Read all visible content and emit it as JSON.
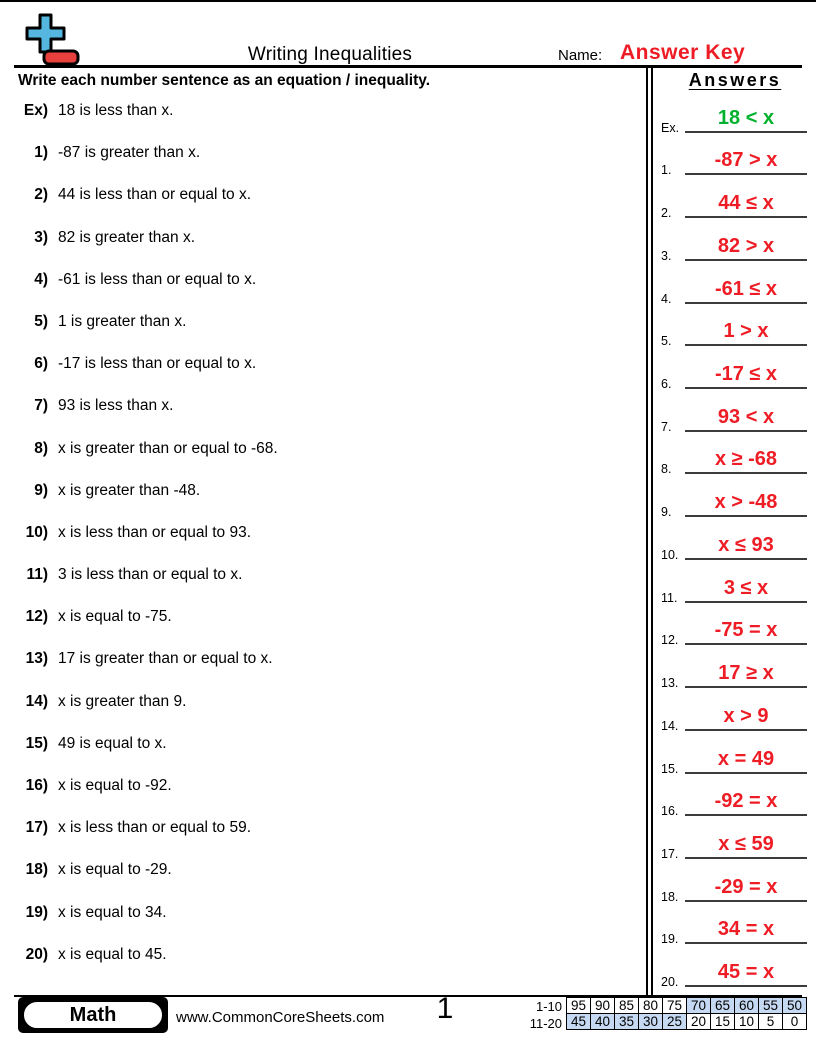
{
  "colors": {
    "answer-red": "#EE1C25",
    "example-green": "#00B22D",
    "logo-blue": "#55B7E0",
    "logo-red": "#E8403D",
    "table-highlight": "#C6D9F2"
  },
  "header": {
    "title": "Writing Inequalities",
    "name_label": "Name:",
    "name_value": "Answer Key"
  },
  "instruction": "Write each number sentence as an equation / inequality.",
  "answers_panel": {
    "heading": "Answers"
  },
  "questions": [
    {
      "label": "Ex)",
      "text": "18 is less than x."
    },
    {
      "label": "1)",
      "text": "-87 is greater than x."
    },
    {
      "label": "2)",
      "text": "44 is less than or equal to x."
    },
    {
      "label": "3)",
      "text": "82 is greater than x."
    },
    {
      "label": "4)",
      "text": "-61 is less than or equal to x."
    },
    {
      "label": "5)",
      "text": "1 is greater than x."
    },
    {
      "label": "6)",
      "text": "-17 is less than or equal to x."
    },
    {
      "label": "7)",
      "text": "93 is less than x."
    },
    {
      "label": "8)",
      "text": "x is greater than or equal to -68."
    },
    {
      "label": "9)",
      "text": "x is greater than -48."
    },
    {
      "label": "10)",
      "text": "x is less than or equal to 93."
    },
    {
      "label": "11)",
      "text": "3 is less than or equal to x."
    },
    {
      "label": "12)",
      "text": "x is equal to -75."
    },
    {
      "label": "13)",
      "text": "17 is greater than or equal to x."
    },
    {
      "label": "14)",
      "text": "x is greater than 9."
    },
    {
      "label": "15)",
      "text": "49 is equal to x."
    },
    {
      "label": "16)",
      "text": "x is equal to -92."
    },
    {
      "label": "17)",
      "text": "x is less than or equal to 59."
    },
    {
      "label": "18)",
      "text": "x is equal to -29."
    },
    {
      "label": "19)",
      "text": "x is equal to 34."
    },
    {
      "label": "20)",
      "text": "x is equal to 45."
    }
  ],
  "answers": [
    {
      "label": "Ex.",
      "value": "18 < x"
    },
    {
      "label": "1.",
      "value": "-87 > x"
    },
    {
      "label": "2.",
      "value": "44 ≤ x"
    },
    {
      "label": "3.",
      "value": "82 > x"
    },
    {
      "label": "4.",
      "value": "-61 ≤ x"
    },
    {
      "label": "5.",
      "value": "1 > x"
    },
    {
      "label": "6.",
      "value": "-17 ≤ x"
    },
    {
      "label": "7.",
      "value": "93 < x"
    },
    {
      "label": "8.",
      "value": "x ≥ -68"
    },
    {
      "label": "9.",
      "value": "x > -48"
    },
    {
      "label": "10.",
      "value": "x ≤ 93"
    },
    {
      "label": "11.",
      "value": "3 ≤ x"
    },
    {
      "label": "12.",
      "value": "-75 = x"
    },
    {
      "label": "13.",
      "value": "17 ≥ x"
    },
    {
      "label": "14.",
      "value": "x > 9"
    },
    {
      "label": "15.",
      "value": "x = 49"
    },
    {
      "label": "16.",
      "value": "-92 = x"
    },
    {
      "label": "17.",
      "value": "x ≤ 59"
    },
    {
      "label": "18.",
      "value": "-29 = x"
    },
    {
      "label": "19.",
      "value": "34 = x"
    },
    {
      "label": "20.",
      "value": "45 = x"
    }
  ],
  "footer": {
    "subject": "Math",
    "website": "www.CommonCoreSheets.com",
    "page_number": "1",
    "score_table": {
      "row1_label": "1-10",
      "row1_values": [
        "95",
        "90",
        "85",
        "80",
        "75",
        "70",
        "65",
        "60",
        "55",
        "50"
      ],
      "row1_shaded_from": 5,
      "row2_label": "11-20",
      "row2_values": [
        "45",
        "40",
        "35",
        "30",
        "25",
        "20",
        "15",
        "10",
        "5",
        "0"
      ],
      "row2_shaded_until": 4
    }
  }
}
